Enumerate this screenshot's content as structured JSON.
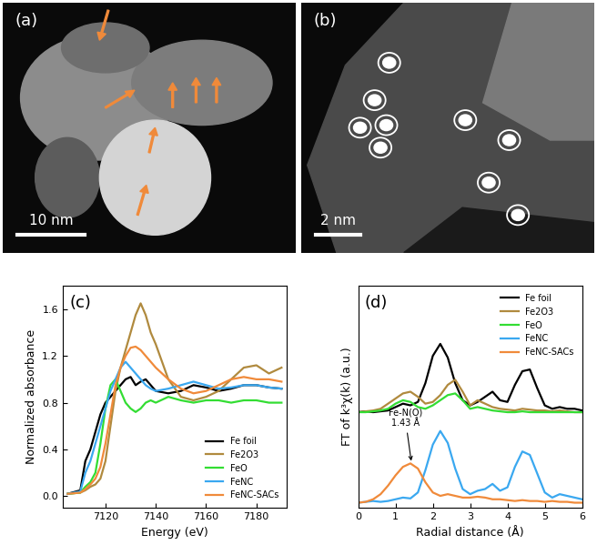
{
  "chart_data": [
    {
      "type": "line",
      "title": "(c)",
      "x_label": "Energy (eV)",
      "y_label": "Normalized absorbance",
      "x": [
        7105,
        7110,
        7112,
        7114,
        7116,
        7118,
        7120,
        7122,
        7124,
        7126,
        7128,
        7130,
        7132,
        7134,
        7136,
        7138,
        7140,
        7145,
        7150,
        7155,
        7160,
        7165,
        7170,
        7175,
        7180,
        7185,
        7190
      ],
      "xlim": [
        7103,
        7192
      ],
      "xticks": [
        7120,
        7140,
        7160,
        7180
      ],
      "ylim": [
        -0.1,
        1.8
      ],
      "yticks": [
        0.0,
        0.4,
        0.8,
        1.2,
        1.6
      ],
      "legend": "lower right",
      "series": [
        {
          "name": "Fe foil",
          "color": "#000000",
          "values": [
            0.02,
            0.05,
            0.3,
            0.4,
            0.55,
            0.7,
            0.8,
            0.85,
            0.9,
            0.95,
            1.0,
            1.02,
            0.95,
            0.98,
            1.0,
            0.95,
            0.9,
            0.88,
            0.9,
            0.95,
            0.93,
            0.9,
            0.92,
            0.95,
            0.95,
            0.93,
            0.92
          ]
        },
        {
          "name": "Fe2O3",
          "color": "#b08a3e",
          "values": [
            0.02,
            0.03,
            0.05,
            0.08,
            0.1,
            0.15,
            0.3,
            0.6,
            0.9,
            1.1,
            1.25,
            1.4,
            1.55,
            1.65,
            1.55,
            1.4,
            1.3,
            1.0,
            0.85,
            0.82,
            0.85,
            0.9,
            1.0,
            1.1,
            1.12,
            1.05,
            1.1
          ]
        },
        {
          "name": "FeO",
          "color": "#33dd33",
          "values": [
            0.02,
            0.03,
            0.08,
            0.12,
            0.2,
            0.45,
            0.75,
            0.95,
            1.0,
            0.9,
            0.8,
            0.75,
            0.72,
            0.75,
            0.8,
            0.82,
            0.8,
            0.85,
            0.82,
            0.8,
            0.82,
            0.82,
            0.8,
            0.82,
            0.82,
            0.8,
            0.8
          ]
        },
        {
          "name": "FeNC",
          "color": "#3aa8f0",
          "values": [
            0.02,
            0.04,
            0.2,
            0.3,
            0.45,
            0.6,
            0.75,
            0.9,
            1.0,
            1.1,
            1.15,
            1.1,
            1.05,
            1.0,
            0.95,
            0.92,
            0.9,
            0.92,
            0.95,
            0.98,
            0.95,
            0.92,
            0.93,
            0.95,
            0.95,
            0.93,
            0.92
          ]
        },
        {
          "name": "FeNC-SACs",
          "color": "#f08a3a",
          "values": [
            0.02,
            0.03,
            0.06,
            0.1,
            0.15,
            0.25,
            0.45,
            0.7,
            0.95,
            1.1,
            1.2,
            1.27,
            1.28,
            1.25,
            1.2,
            1.15,
            1.1,
            1.0,
            0.92,
            0.88,
            0.9,
            0.95,
            1.0,
            1.02,
            1.0,
            1.0,
            0.98
          ]
        }
      ]
    },
    {
      "type": "line",
      "title": "(d)",
      "x_label": "Radial distance (Å)",
      "y_label": "FT of k³χ(k) (a.u.)",
      "x": [
        0,
        0.2,
        0.4,
        0.6,
        0.8,
        1.0,
        1.2,
        1.4,
        1.6,
        1.8,
        2.0,
        2.2,
        2.4,
        2.6,
        2.8,
        3.0,
        3.2,
        3.4,
        3.6,
        3.8,
        4.0,
        4.2,
        4.4,
        4.6,
        4.8,
        5.0,
        5.2,
        5.4,
        5.6,
        5.8,
        6.0
      ],
      "xlim": [
        0,
        6
      ],
      "xticks": [
        0,
        1,
        2,
        3,
        4,
        5,
        6
      ],
      "ylim": [
        0,
        13
      ],
      "tick_labels": "x",
      "legend": "upper right",
      "annotations": [
        {
          "text": "Fe-N(O)\n1.43 Å",
          "x": 1.43,
          "y": 2.6
        }
      ],
      "series": [
        {
          "name": "Fe foil",
          "color": "#000000",
          "values": [
            5.6,
            5.65,
            5.6,
            5.65,
            5.7,
            5.9,
            6.1,
            6.0,
            6.2,
            7.3,
            8.9,
            9.6,
            8.8,
            7.3,
            6.3,
            6.0,
            6.2,
            6.5,
            6.8,
            6.3,
            6.2,
            7.2,
            8.0,
            8.1,
            7.0,
            6.0,
            5.8,
            5.9,
            5.8,
            5.8,
            5.7
          ]
        },
        {
          "name": "Fe2O3",
          "color": "#b08a3e",
          "values": [
            5.6,
            5.65,
            5.7,
            5.8,
            6.1,
            6.4,
            6.7,
            6.8,
            6.5,
            6.1,
            6.2,
            6.6,
            7.2,
            7.5,
            6.8,
            6.0,
            6.3,
            6.1,
            5.9,
            5.8,
            5.75,
            5.7,
            5.8,
            5.75,
            5.7,
            5.7,
            5.65,
            5.7,
            5.65,
            5.6,
            5.6
          ]
        },
        {
          "name": "FeO",
          "color": "#33dd33",
          "values": [
            5.6,
            5.6,
            5.65,
            5.7,
            5.8,
            6.1,
            6.3,
            6.2,
            5.9,
            5.8,
            6.0,
            6.3,
            6.6,
            6.7,
            6.3,
            5.8,
            5.9,
            5.8,
            5.7,
            5.65,
            5.6,
            5.6,
            5.65,
            5.6,
            5.6,
            5.6,
            5.6,
            5.6,
            5.6,
            5.6,
            5.6
          ]
        },
        {
          "name": "FeNC",
          "color": "#3aa8f0",
          "values": [
            0.3,
            0.35,
            0.4,
            0.35,
            0.4,
            0.5,
            0.6,
            0.55,
            0.9,
            2.2,
            3.7,
            4.5,
            3.8,
            2.3,
            1.1,
            0.8,
            1.0,
            1.1,
            1.4,
            1.0,
            1.2,
            2.4,
            3.3,
            3.1,
            2.0,
            0.9,
            0.6,
            0.8,
            0.7,
            0.6,
            0.5
          ]
        },
        {
          "name": "FeNC-SACs",
          "color": "#f08a3a",
          "values": [
            0.3,
            0.35,
            0.5,
            0.8,
            1.3,
            1.9,
            2.4,
            2.6,
            2.3,
            1.5,
            0.9,
            0.7,
            0.8,
            0.7,
            0.6,
            0.6,
            0.65,
            0.6,
            0.5,
            0.5,
            0.45,
            0.4,
            0.45,
            0.4,
            0.4,
            0.35,
            0.4,
            0.35,
            0.35,
            0.3,
            0.3
          ]
        }
      ]
    }
  ],
  "images": [
    {
      "label": "(a)",
      "scale_bar": "10 nm"
    },
    {
      "label": "(b)",
      "scale_bar": "2 nm"
    }
  ]
}
